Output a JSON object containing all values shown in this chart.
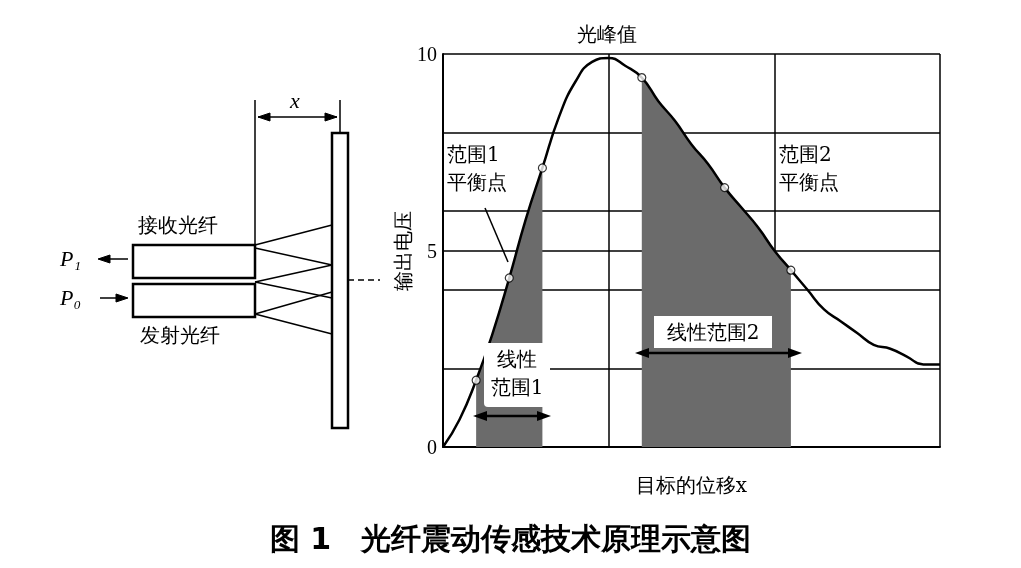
{
  "chart_data": {
    "type": "line",
    "title": "图 1　光纤震动传感技术原理示意图",
    "xlabel": "目标的位移x",
    "ylabel": "输出电压",
    "categories": [
      null,
      null,
      null,
      null,
      null,
      null,
      null,
      null,
      null,
      null,
      null,
      null,
      null,
      null,
      null,
      null,
      null,
      null,
      null,
      null,
      null,
      null,
      null,
      null,
      null,
      null,
      null,
      null,
      null,
      null,
      null
    ],
    "series": [
      {
        "color": "#000000",
        "values": [
          0,
          0.7,
          1.7,
          2.9,
          4.3,
          5.8,
          7.1,
          8.4,
          9.3,
          9.8,
          9.9,
          9.7,
          9.4,
          8.8,
          8.3,
          7.7,
          7.2,
          6.6,
          6.1,
          5.6,
          5.0,
          4.5,
          4.0,
          3.5,
          3.2,
          2.9,
          2.6,
          2.5,
          2.3,
          2.1,
          2.1
        ]
      },
      {
        "type": "area",
        "color": "#6b6b6b",
        "values": [
          null,
          null,
          1.7,
          2.9,
          4.3,
          5.8,
          7.1,
          null,
          null,
          null,
          null,
          null,
          null,
          null,
          null,
          null,
          null,
          null,
          null,
          null,
          null,
          null,
          null,
          null,
          null,
          null,
          null,
          null,
          null,
          null,
          null
        ]
      },
      {
        "type": "area",
        "color": "#6b6b6b",
        "values": [
          null,
          null,
          null,
          null,
          null,
          null,
          null,
          null,
          null,
          null,
          null,
          null,
          9.4,
          8.8,
          8.3,
          7.7,
          7.2,
          6.6,
          6.1,
          5.6,
          5.0,
          4.5,
          null,
          null,
          null,
          null,
          null,
          null,
          null,
          null,
          null
        ]
      },
      {
        "type": "scatter",
        "color": "#ffffff",
        "marker": "circle",
        "values": [
          null,
          null,
          1.7,
          null,
          4.3,
          null,
          7.1,
          null,
          null,
          null,
          null,
          null,
          9.4,
          null,
          null,
          null,
          null,
          6.6,
          null,
          null,
          null,
          4.5,
          null,
          null,
          null,
          null,
          null,
          null,
          null,
          null,
          null
        ]
      }
    ],
    "ylim": [
      0,
      10
    ],
    "yticks": [
      0,
      {
        "value": 2,
        "label": null
      },
      {
        "value": 4,
        "label": null
      },
      5,
      {
        "value": 6,
        "label": null
      },
      {
        "value": 8,
        "label": null
      },
      10
    ],
    "tick_labels": "y",
    "grid": true,
    "annotations": [
      "光峰值",
      "范围1",
      "平衡点",
      "范围2",
      "平衡点",
      "线性",
      "范围1",
      "线性范围2",
      "接收光纤",
      "发射光纤",
      "P₁",
      "P₀",
      "x"
    ]
  }
}
